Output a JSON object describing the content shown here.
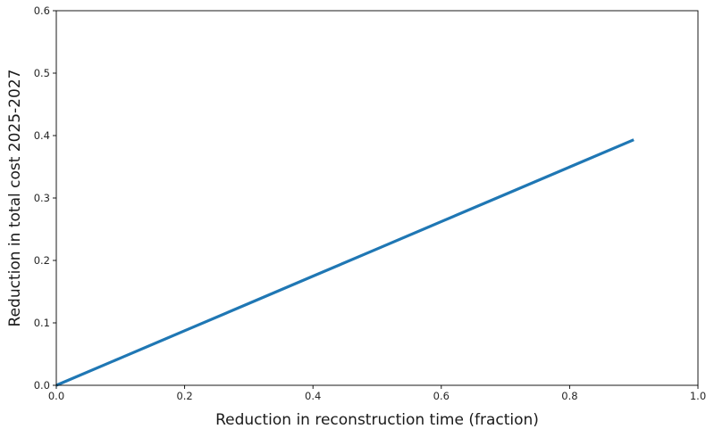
{
  "chart_data": {
    "type": "line",
    "title": "",
    "xlabel": "Reduction in reconstruction time (fraction)",
    "ylabel": "Reduction in total cost 2025-2027",
    "xlim": [
      0.0,
      1.0
    ],
    "ylim": [
      0.0,
      0.6
    ],
    "xticks": [
      "0.0",
      "0.2",
      "0.4",
      "0.6",
      "0.8",
      "1.0"
    ],
    "yticks": [
      "0.0",
      "0.1",
      "0.2",
      "0.3",
      "0.4",
      "0.5",
      "0.6"
    ],
    "grid": false,
    "series": [
      {
        "color": "#1f77b4",
        "x": [
          0.0,
          0.1,
          0.2,
          0.3,
          0.4,
          0.5,
          0.6,
          0.7,
          0.8,
          0.9
        ],
        "y": [
          0.0,
          0.0437,
          0.0874,
          0.1311,
          0.1748,
          0.2185,
          0.2622,
          0.3059,
          0.3496,
          0.3933
        ]
      }
    ]
  }
}
